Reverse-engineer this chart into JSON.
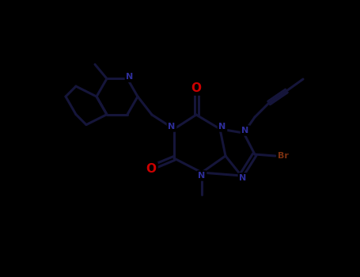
{
  "background_color": "#000000",
  "bond_color": "#15153a",
  "atom_colors": {
    "N": "#2e2e9a",
    "O": "#cc0000",
    "Br": "#7a3010",
    "C": "#15153a"
  },
  "figsize": [
    4.55,
    3.5
  ],
  "dpi": 100
}
